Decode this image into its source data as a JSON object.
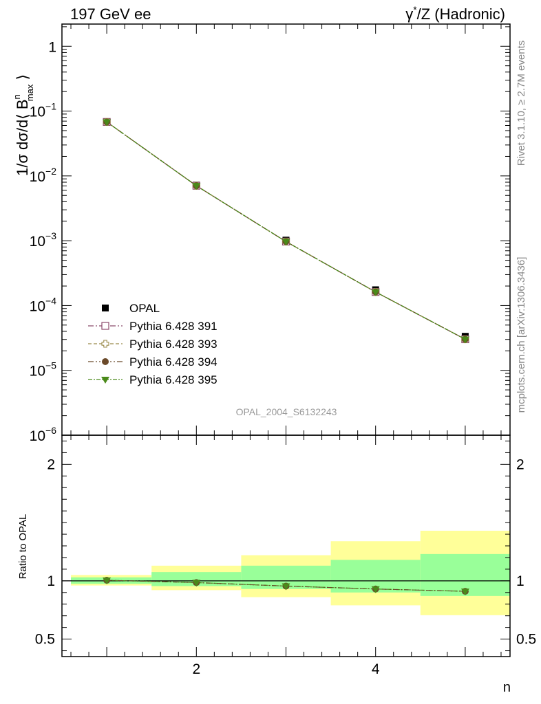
{
  "header": {
    "left_label": "197 GeV ee",
    "right_label_pre": "γ",
    "right_label_sup": "*",
    "right_label_post": "/Z (Hadronic)"
  },
  "side_labels": {
    "rivet": "Rivet 3.1.10, ≥ 2.7M events",
    "mcplots": "mcplots.cern.ch [arXiv:1306.3436]"
  },
  "watermark": "OPAL_2004_S6132243",
  "chart_data": [
    {
      "type": "scatter",
      "panel": "main",
      "ylabel_parts": {
        "prefix": "1/σ dσ/d⟨ B",
        "sup": "n",
        "sub": "max",
        "suffix": " ⟩"
      },
      "yscale": "log",
      "ylim": [
        1e-06,
        2.2
      ],
      "xlim": [
        0.5,
        5.5
      ],
      "ytick_labels": [
        {
          "value": 1,
          "base": "1",
          "exp": ""
        },
        {
          "value": 0.1,
          "base": "10",
          "exp": "−1"
        },
        {
          "value": 0.01,
          "base": "10",
          "exp": "−2"
        },
        {
          "value": 0.001,
          "base": "10",
          "exp": "−3"
        },
        {
          "value": 0.0001,
          "base": "10",
          "exp": "−4"
        },
        {
          "value": 1e-05,
          "base": "10",
          "exp": "−5"
        },
        {
          "value": 1e-06,
          "base": "10",
          "exp": "−6"
        }
      ],
      "x": [
        1,
        2,
        3,
        4,
        5
      ],
      "series": [
        {
          "name": "OPAL",
          "marker": "filled-square",
          "color": "#000000",
          "line": false,
          "values": [
            0.068,
            0.0072,
            0.00102,
            0.000175,
            3.35e-05
          ]
        },
        {
          "name": "Pythia 6.428 391",
          "marker": "open-square",
          "color": "#8b4a6b",
          "line": true,
          "values": [
            0.068,
            0.00705,
            0.00097,
            0.000162,
            3.02e-05
          ]
        },
        {
          "name": "Pythia 6.428 393",
          "marker": "open-cross",
          "color": "#9a8a4a",
          "line": true,
          "values": [
            0.068,
            0.00705,
            0.00097,
            0.000162,
            3.02e-05
          ]
        },
        {
          "name": "Pythia 6.428 394",
          "marker": "filled-circle",
          "color": "#6b4a2a",
          "line": true,
          "values": [
            0.068,
            0.00705,
            0.00097,
            0.000162,
            3.02e-05
          ]
        },
        {
          "name": "Pythia 6.428 395",
          "marker": "filled-triangle-down",
          "color": "#4a8a1a",
          "line": true,
          "values": [
            0.068,
            0.00705,
            0.00097,
            0.000162,
            3.02e-05
          ]
        }
      ]
    },
    {
      "type": "scatter",
      "panel": "ratio",
      "ylabel": "Ratio to OPAL",
      "xlabel": "n",
      "ylim": [
        0.35,
        2.25
      ],
      "xlim": [
        0.5,
        5.5
      ],
      "xtick_labels": [
        {
          "value": 2,
          "label": "2"
        },
        {
          "value": 4,
          "label": "4"
        }
      ],
      "ytick_labels": [
        {
          "value": 2,
          "label": "2"
        },
        {
          "value": 1,
          "label": "1"
        },
        {
          "value": 0.5,
          "label": "0.5"
        }
      ],
      "bands": [
        {
          "x0": 0.6,
          "x1": 1.5,
          "yellow": [
            0.96,
            1.05
          ],
          "green": [
            0.975,
            1.03
          ]
        },
        {
          "x0": 1.5,
          "x1": 2.5,
          "yellow": [
            0.92,
            1.13
          ],
          "green": [
            0.955,
            1.075
          ]
        },
        {
          "x0": 2.5,
          "x1": 3.5,
          "yellow": [
            0.86,
            1.22
          ],
          "green": [
            0.93,
            1.13
          ]
        },
        {
          "x0": 3.5,
          "x1": 4.5,
          "yellow": [
            0.79,
            1.34
          ],
          "green": [
            0.9,
            1.18
          ]
        },
        {
          "x0": 4.5,
          "x1": 5.5,
          "yellow": [
            0.705,
            1.43
          ],
          "green": [
            0.87,
            1.23
          ]
        }
      ],
      "x": [
        1,
        2,
        3,
        4,
        5
      ],
      "values": [
        1.005,
        0.985,
        0.955,
        0.93,
        0.91
      ]
    }
  ]
}
